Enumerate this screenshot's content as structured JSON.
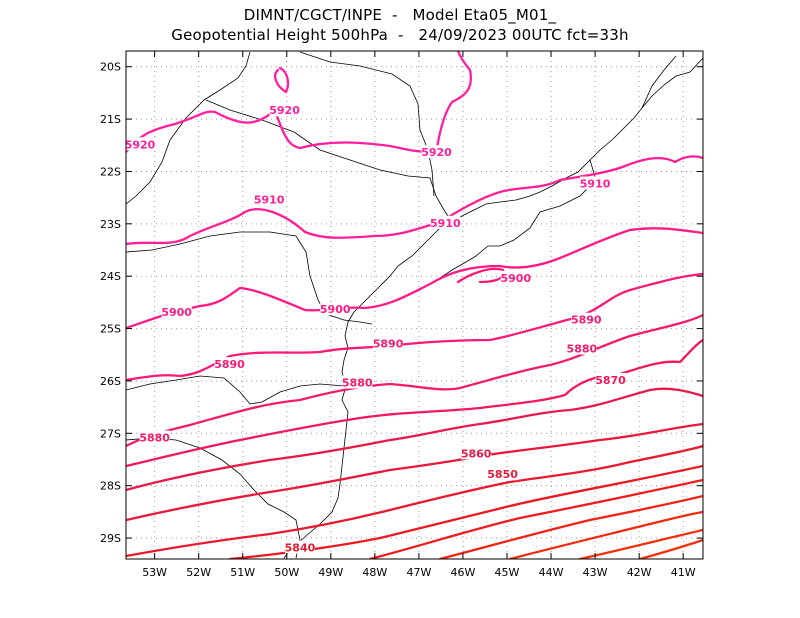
{
  "title": {
    "line1": "DIMNT/CGCT/INPE  -   Model Eta05_M01_",
    "line2": "Geopotential Height 500hPa  -   24/09/2023 00UTC fct=33h"
  },
  "map": {
    "lon_ticks": [
      "53W",
      "52W",
      "51W",
      "50W",
      "49W",
      "48W",
      "47W",
      "46W",
      "45W",
      "44W",
      "43W",
      "42W",
      "41W"
    ],
    "lat_ticks": [
      "20S",
      "21S",
      "22S",
      "23S",
      "24S",
      "25S",
      "26S",
      "27S",
      "28S",
      "29S"
    ],
    "lon_range": [
      -53.65,
      -40.55
    ],
    "lat_range": [
      -29.4,
      -19.7
    ],
    "grid": "dotted",
    "colors": {
      "5920": "#ff1fa0",
      "5910": "#ff1f95",
      "5900": "#ff1a85",
      "5890": "#fa1a78",
      "5880": "#f51a6a",
      "5870": "#f01a5a",
      "5860": "#e81a48",
      "5850": "#e81a3a",
      "5840": "#e81a30",
      "5830": "#ea1a25",
      "5820": "#ee1c1c",
      "5810": "#f02414",
      "5800": "#f22a10",
      "5790": "#f5300c"
    }
  },
  "chart_data": {
    "type": "contour",
    "variable": "Geopotential Height 500hPa",
    "units": "gpm",
    "contour_interval": 10,
    "labeled_contours": [
      {
        "value": 5920,
        "labels": [
          {
            "lon": -53.6,
            "lat": -21.5
          },
          {
            "lon": -50.05,
            "lat": -20.85
          },
          {
            "lon": -46.6,
            "lat": -21.65
          }
        ]
      },
      {
        "value": 5910,
        "labels": [
          {
            "lon": -50.4,
            "lat": -22.55
          },
          {
            "lon": -46.4,
            "lat": -23.0
          },
          {
            "lon": -43.0,
            "lat": -22.25
          }
        ]
      },
      {
        "value": 5900,
        "labels": [
          {
            "lon": -52.5,
            "lat": -24.7
          },
          {
            "lon": -48.9,
            "lat": -24.65
          },
          {
            "lon": -44.8,
            "lat": -24.05
          }
        ]
      },
      {
        "value": 5890,
        "labels": [
          {
            "lon": -51.3,
            "lat": -25.7
          },
          {
            "lon": -47.7,
            "lat": -25.3
          },
          {
            "lon": -43.2,
            "lat": -24.85
          }
        ]
      },
      {
        "value": 5880,
        "labels": [
          {
            "lon": -53.0,
            "lat": -27.1
          },
          {
            "lon": -48.4,
            "lat": -26.05
          },
          {
            "lon": -43.3,
            "lat": -25.4
          }
        ]
      },
      {
        "value": 5870,
        "labels": [
          {
            "lon": -42.65,
            "lat": -26.0
          }
        ]
      },
      {
        "value": 5860,
        "labels": [
          {
            "lon": -45.7,
            "lat": -27.4
          }
        ]
      },
      {
        "value": 5850,
        "labels": [
          {
            "lon": -45.1,
            "lat": -27.8
          }
        ]
      },
      {
        "value": 5840,
        "labels": [
          {
            "lon": -49.7,
            "lat": -29.2
          }
        ]
      }
    ],
    "unlabeled_contours": [
      5830,
      5820,
      5810,
      5800,
      5790
    ]
  }
}
